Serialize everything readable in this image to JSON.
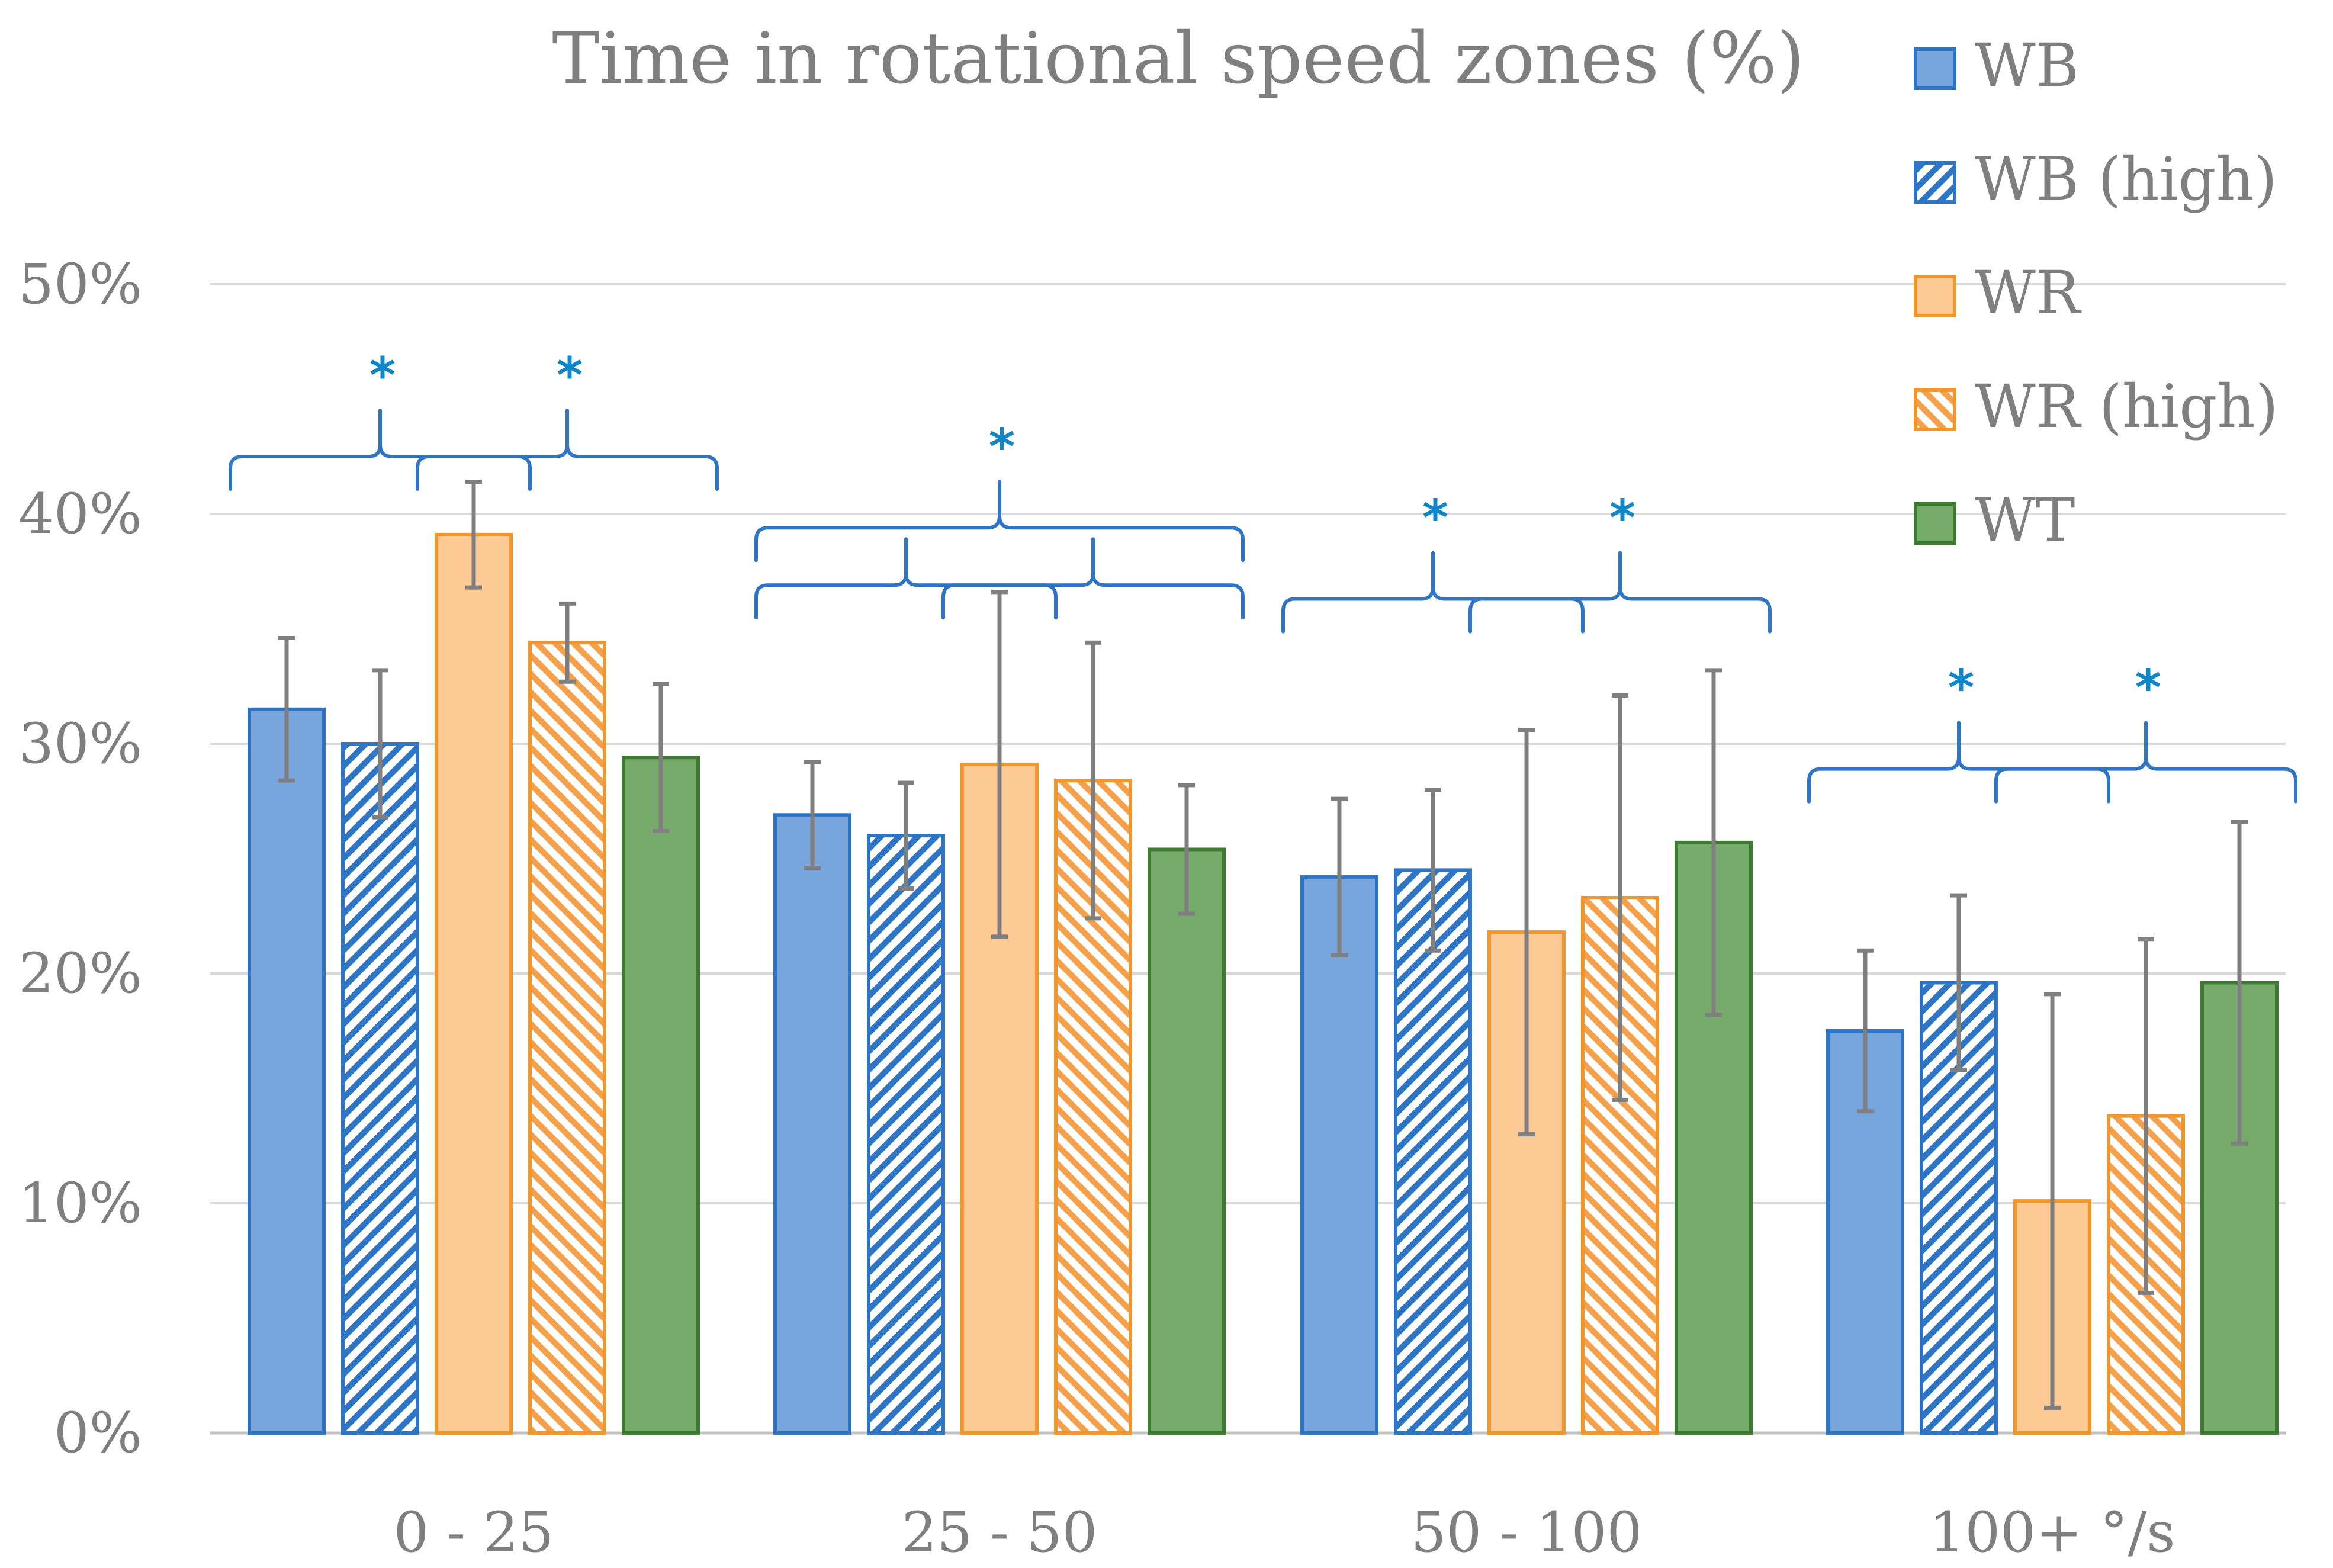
{
  "chart_data": {
    "type": "bar",
    "title": "Time in rotational speed zones (%)",
    "xlabel": "",
    "ylabel": "",
    "ylim": [
      0,
      50
    ],
    "yticks": [
      0,
      10,
      20,
      30,
      40,
      50
    ],
    "ytick_labels": [
      "0%",
      "10%",
      "20%",
      "30%",
      "40%",
      "50%"
    ],
    "grid": true,
    "legend_position": "top-right",
    "categories": [
      "0 - 25",
      "25 - 50",
      "50 - 100",
      "100+ °/s"
    ],
    "series": [
      {
        "name": "WB",
        "color": "#78a5dc",
        "edge": "#2e75c6",
        "pattern": "solid",
        "values": [
          31.5,
          26.9,
          24.2,
          17.5
        ],
        "errors": [
          3.1,
          2.3,
          3.4,
          3.5
        ]
      },
      {
        "name": "WB (high)",
        "color": "#ffffff",
        "edge": "#2e75c6",
        "pattern": "hatched",
        "values": [
          30.0,
          26.0,
          24.5,
          19.6
        ],
        "errors": [
          3.2,
          2.3,
          3.5,
          3.8
        ]
      },
      {
        "name": "WR",
        "color": "#fdc994",
        "edge": "#f0962c",
        "pattern": "solid",
        "values": [
          39.1,
          29.1,
          21.8,
          10.1
        ],
        "errors": [
          2.3,
          7.5,
          8.8,
          9.0
        ]
      },
      {
        "name": "WR (high)",
        "color": "#ffffff",
        "edge": "#f0962c",
        "pattern": "hatched",
        "values": [
          34.4,
          28.4,
          23.3,
          13.8
        ],
        "errors": [
          1.7,
          6.0,
          8.8,
          7.7
        ]
      },
      {
        "name": "WT",
        "color": "#76aa6b",
        "edge": "#3f7a33",
        "pattern": "solid",
        "values": [
          29.4,
          25.4,
          25.7,
          19.6
        ],
        "errors": [
          3.2,
          2.8,
          7.5,
          7.0
        ]
      }
    ],
    "significance": [
      {
        "category": 0,
        "from": 0,
        "to": 2,
        "level": 42.5,
        "label": "*"
      },
      {
        "category": 0,
        "from": 2,
        "to": 4,
        "level": 42.5,
        "label": "*"
      },
      {
        "category": 1,
        "from": 0,
        "to": 4,
        "level": 39.4,
        "label": "*"
      },
      {
        "category": 1,
        "from": 0,
        "to": 2,
        "level": 36.9,
        "label": ""
      },
      {
        "category": 1,
        "from": 2,
        "to": 4,
        "level": 36.9,
        "label": ""
      },
      {
        "category": 2,
        "from": 0,
        "to": 2,
        "level": 36.3,
        "label": "*"
      },
      {
        "category": 2,
        "from": 2,
        "to": 4,
        "level": 36.3,
        "label": "*"
      },
      {
        "category": 3,
        "from": 0,
        "to": 2,
        "level": 28.9,
        "label": "*"
      },
      {
        "category": 3,
        "from": 2,
        "to": 4,
        "level": 28.9,
        "label": "*"
      }
    ]
  }
}
